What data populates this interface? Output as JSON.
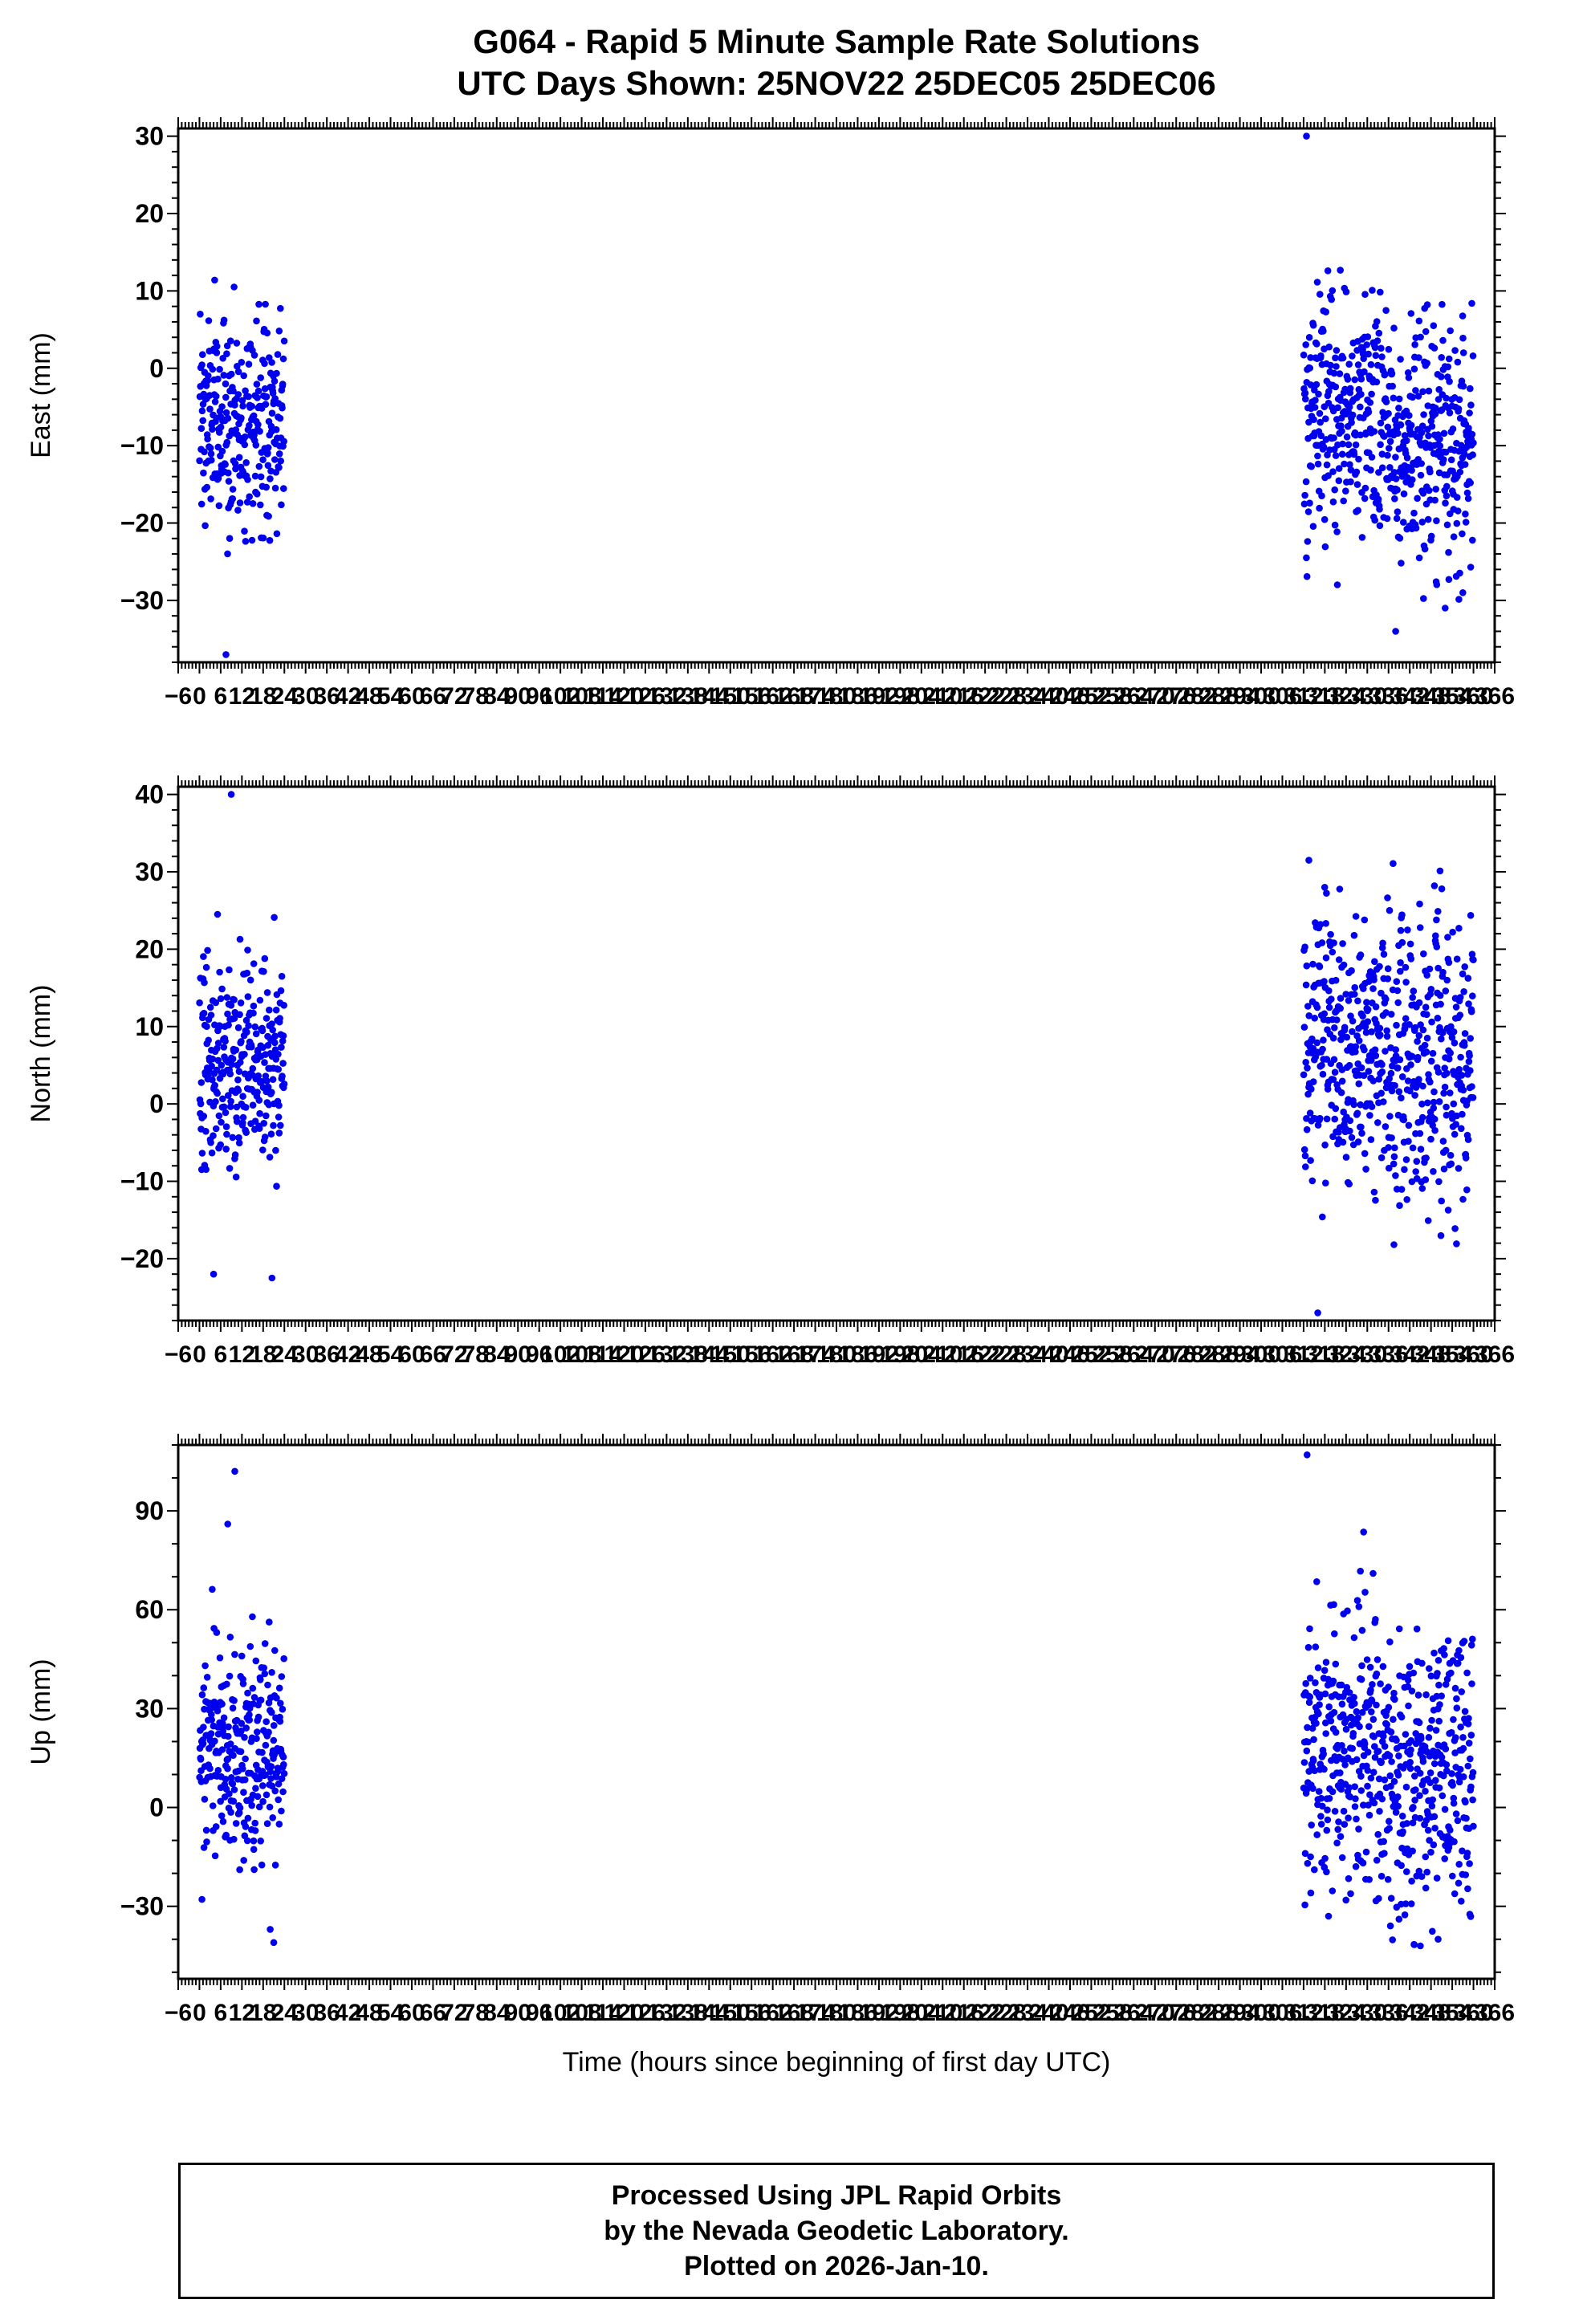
{
  "chart_data": {
    "type": "scatter",
    "station": "G064",
    "title": "G064 - Rapid 5 Minute Sample Rate Solutions",
    "subtitle": "UTC Days Shown:  25NOV22 25DEC05 25DEC06",
    "utc_days": [
      "25NOV22",
      "25DEC05",
      "25DEC06"
    ],
    "xlabel": "Time (hours since beginning of first day UTC)",
    "x_range": [
      -6,
      366
    ],
    "x_major": 6,
    "x_minor": 1,
    "marker_color": "#0000EE",
    "frame_color": "#000000",
    "sample_interval_hours": 0.083333,
    "legend": "none",
    "grid": false,
    "panels": [
      {
        "name": "east",
        "ylabel": "East (mm)",
        "y_range": [
          -38,
          31
        ],
        "y_ticks": [
          -30,
          -20,
          -10,
          0,
          10,
          20,
          30
        ],
        "y_minor": 2,
        "clusters": [
          {
            "x_start": 0,
            "x_end": 24,
            "n": 288,
            "mean": -7.0,
            "sd": 7.5,
            "clip": [
              -25,
              12
            ]
          },
          {
            "x_start": 312,
            "x_end": 336,
            "n": 288,
            "mean": -6.5,
            "sd": 7.5,
            "clip": [
              -28,
              13
            ]
          },
          {
            "x_start": 336,
            "x_end": 360,
            "n": 288,
            "mean": -9.0,
            "sd": 8.0,
            "clip": [
              -33,
              12
            ]
          }
        ],
        "outliers": [
          [
            7.5,
            -37
          ],
          [
            312.8,
            30
          ],
          [
            338,
            -34
          ],
          [
            352,
            -31
          ],
          [
            357,
            -29
          ]
        ]
      },
      {
        "name": "north",
        "ylabel": "North (mm)",
        "y_range": [
          -28,
          41
        ],
        "y_ticks": [
          -20,
          -10,
          0,
          10,
          20,
          30,
          40
        ],
        "y_minor": 2,
        "clusters": [
          {
            "x_start": 0,
            "x_end": 24,
            "n": 288,
            "mean": 5.0,
            "sd": 7.0,
            "clip": [
              -12,
              26
            ]
          },
          {
            "x_start": 312,
            "x_end": 336,
            "n": 288,
            "mean": 7.5,
            "sd": 8.5,
            "clip": [
              -16,
              30
            ]
          },
          {
            "x_start": 336,
            "x_end": 360,
            "n": 288,
            "mean": 5.0,
            "sd": 10.0,
            "clip": [
              -19,
              32
            ]
          }
        ],
        "outliers": [
          [
            9,
            40
          ],
          [
            4,
            -22
          ],
          [
            20.5,
            -22.5
          ],
          [
            316,
            -27
          ],
          [
            313.5,
            31.5
          ]
        ]
      },
      {
        "name": "up",
        "ylabel": "Up (mm)",
        "y_range": [
          -52,
          110
        ],
        "y_ticks": [
          -30,
          0,
          30,
          60,
          90
        ],
        "y_minor": 10,
        "clusters": [
          {
            "x_start": 0,
            "x_end": 24,
            "n": 288,
            "mean": 17.0,
            "sd": 18.0,
            "clip": [
              -30,
              85
            ]
          },
          {
            "x_start": 312,
            "x_end": 336,
            "n": 288,
            "mean": 18.0,
            "sd": 20.0,
            "clip": [
              -38,
              88
            ]
          },
          {
            "x_start": 336,
            "x_end": 360,
            "n": 288,
            "mean": 10.0,
            "sd": 22.0,
            "clip": [
              -43,
              85
            ]
          }
        ],
        "outliers": [
          [
            10,
            102
          ],
          [
            8,
            86
          ],
          [
            313,
            107
          ],
          [
            345,
            -42
          ],
          [
            350,
            -40
          ],
          [
            20,
            -37
          ],
          [
            21,
            -41
          ]
        ]
      }
    ]
  },
  "footer": {
    "lines": [
      "Processed Using JPL Rapid Orbits",
      "by the Nevada Geodetic Laboratory.",
      "Plotted on 2026-Jan-10."
    ]
  }
}
